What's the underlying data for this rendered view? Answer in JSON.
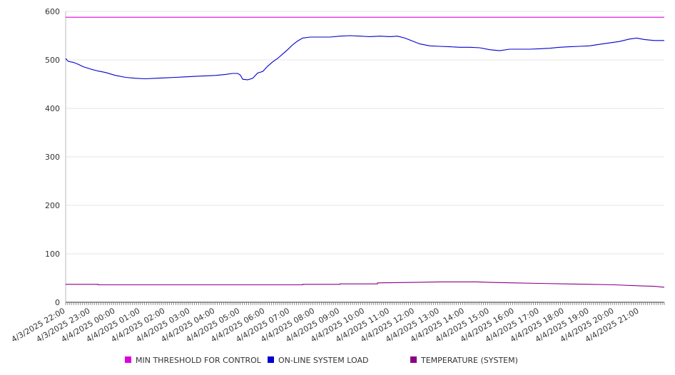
{
  "chart_data": {
    "type": "line",
    "title": "",
    "xlabel": "",
    "ylabel": "",
    "ylim": [
      0,
      600
    ],
    "yticks": [
      0,
      100,
      200,
      300,
      400,
      500,
      600
    ],
    "grid": true,
    "legend_position": "bottom",
    "x_tick_labels": [
      "4/3/2025 22:00",
      "4/3/2025 23:00",
      "4/4/2025 00:00",
      "4/4/2025 01:00",
      "4/4/2025 02:00",
      "4/4/2025 03:00",
      "4/4/2025 04:00",
      "4/4/2025 05:00",
      "4/4/2025 06:00",
      "4/4/2025 07:00",
      "4/4/2025 08:00",
      "4/4/2025 09:00",
      "4/4/2025 10:00",
      "4/4/2025 11:00",
      "4/4/2025 12:00",
      "4/4/2025 13:00",
      "4/4/2025 14:00",
      "4/4/2025 15:00",
      "4/4/2025 16:00",
      "4/4/2025 17:00",
      "4/4/2025 18:00",
      "4/4/2025 19:00",
      "4/4/2025 20:00",
      "4/4/2025 21:00"
    ],
    "x_range_hours": [
      0,
      24
    ],
    "series": [
      {
        "name": "MIN THRESHOLD FOR CONTROL",
        "color": "#dd00dd",
        "points": [
          [
            0,
            588
          ],
          [
            24,
            588
          ]
        ]
      },
      {
        "name": "ON-LINE SYSTEM LOAD",
        "color": "#0000cc",
        "points": [
          [
            0,
            503
          ],
          [
            0.1,
            497
          ],
          [
            0.3,
            495
          ],
          [
            0.5,
            491
          ],
          [
            0.7,
            486
          ],
          [
            1.0,
            481
          ],
          [
            1.3,
            477
          ],
          [
            1.6,
            474
          ],
          [
            2.0,
            468
          ],
          [
            2.4,
            464
          ],
          [
            2.8,
            462
          ],
          [
            3.2,
            461
          ],
          [
            3.6,
            462
          ],
          [
            4.0,
            463
          ],
          [
            4.4,
            464
          ],
          [
            4.8,
            465
          ],
          [
            5.2,
            466
          ],
          [
            5.6,
            467
          ],
          [
            6.0,
            468
          ],
          [
            6.4,
            470
          ],
          [
            6.7,
            472
          ],
          [
            6.9,
            472
          ],
          [
            7.0,
            469
          ],
          [
            7.1,
            460
          ],
          [
            7.3,
            459
          ],
          [
            7.5,
            462
          ],
          [
            7.7,
            473
          ],
          [
            7.9,
            476
          ],
          [
            8.1,
            487
          ],
          [
            8.3,
            496
          ],
          [
            8.5,
            503
          ],
          [
            8.7,
            512
          ],
          [
            8.9,
            521
          ],
          [
            9.1,
            531
          ],
          [
            9.3,
            539
          ],
          [
            9.5,
            545
          ],
          [
            9.8,
            547
          ],
          [
            10.2,
            547
          ],
          [
            10.6,
            547
          ],
          [
            11.0,
            549
          ],
          [
            11.4,
            550
          ],
          [
            11.8,
            549
          ],
          [
            12.2,
            548
          ],
          [
            12.6,
            549
          ],
          [
            13.0,
            548
          ],
          [
            13.3,
            549
          ],
          [
            13.6,
            545
          ],
          [
            13.9,
            539
          ],
          [
            14.2,
            533
          ],
          [
            14.6,
            529
          ],
          [
            15.0,
            528
          ],
          [
            15.4,
            527
          ],
          [
            15.8,
            526
          ],
          [
            16.2,
            526
          ],
          [
            16.6,
            525
          ],
          [
            17.0,
            521
          ],
          [
            17.4,
            519
          ],
          [
            17.8,
            522
          ],
          [
            18.2,
            522
          ],
          [
            18.6,
            522
          ],
          [
            19.0,
            523
          ],
          [
            19.4,
            524
          ],
          [
            19.8,
            526
          ],
          [
            20.2,
            527
          ],
          [
            20.6,
            528
          ],
          [
            21.0,
            529
          ],
          [
            21.4,
            532
          ],
          [
            21.8,
            535
          ],
          [
            22.2,
            538
          ],
          [
            22.6,
            543
          ],
          [
            22.9,
            545
          ],
          [
            23.2,
            542
          ],
          [
            23.6,
            540
          ],
          [
            24.0,
            540
          ]
        ]
      },
      {
        "name": "TEMPERATURE (SYSTEM)",
        "color": "#880088",
        "points": [
          [
            0,
            37
          ],
          [
            1.3,
            37
          ],
          [
            1.3,
            36
          ],
          [
            9.5,
            36
          ],
          [
            9.5,
            37
          ],
          [
            11.0,
            37
          ],
          [
            11.0,
            38
          ],
          [
            12.5,
            38
          ],
          [
            12.5,
            40
          ],
          [
            14.0,
            41
          ],
          [
            15.0,
            42
          ],
          [
            16.5,
            42
          ],
          [
            17.0,
            41
          ],
          [
            18.0,
            40
          ],
          [
            19.0,
            39
          ],
          [
            20.0,
            38
          ],
          [
            21.0,
            37
          ],
          [
            22.0,
            36
          ],
          [
            23.0,
            34
          ],
          [
            23.6,
            33
          ],
          [
            24.0,
            31
          ]
        ]
      }
    ]
  }
}
